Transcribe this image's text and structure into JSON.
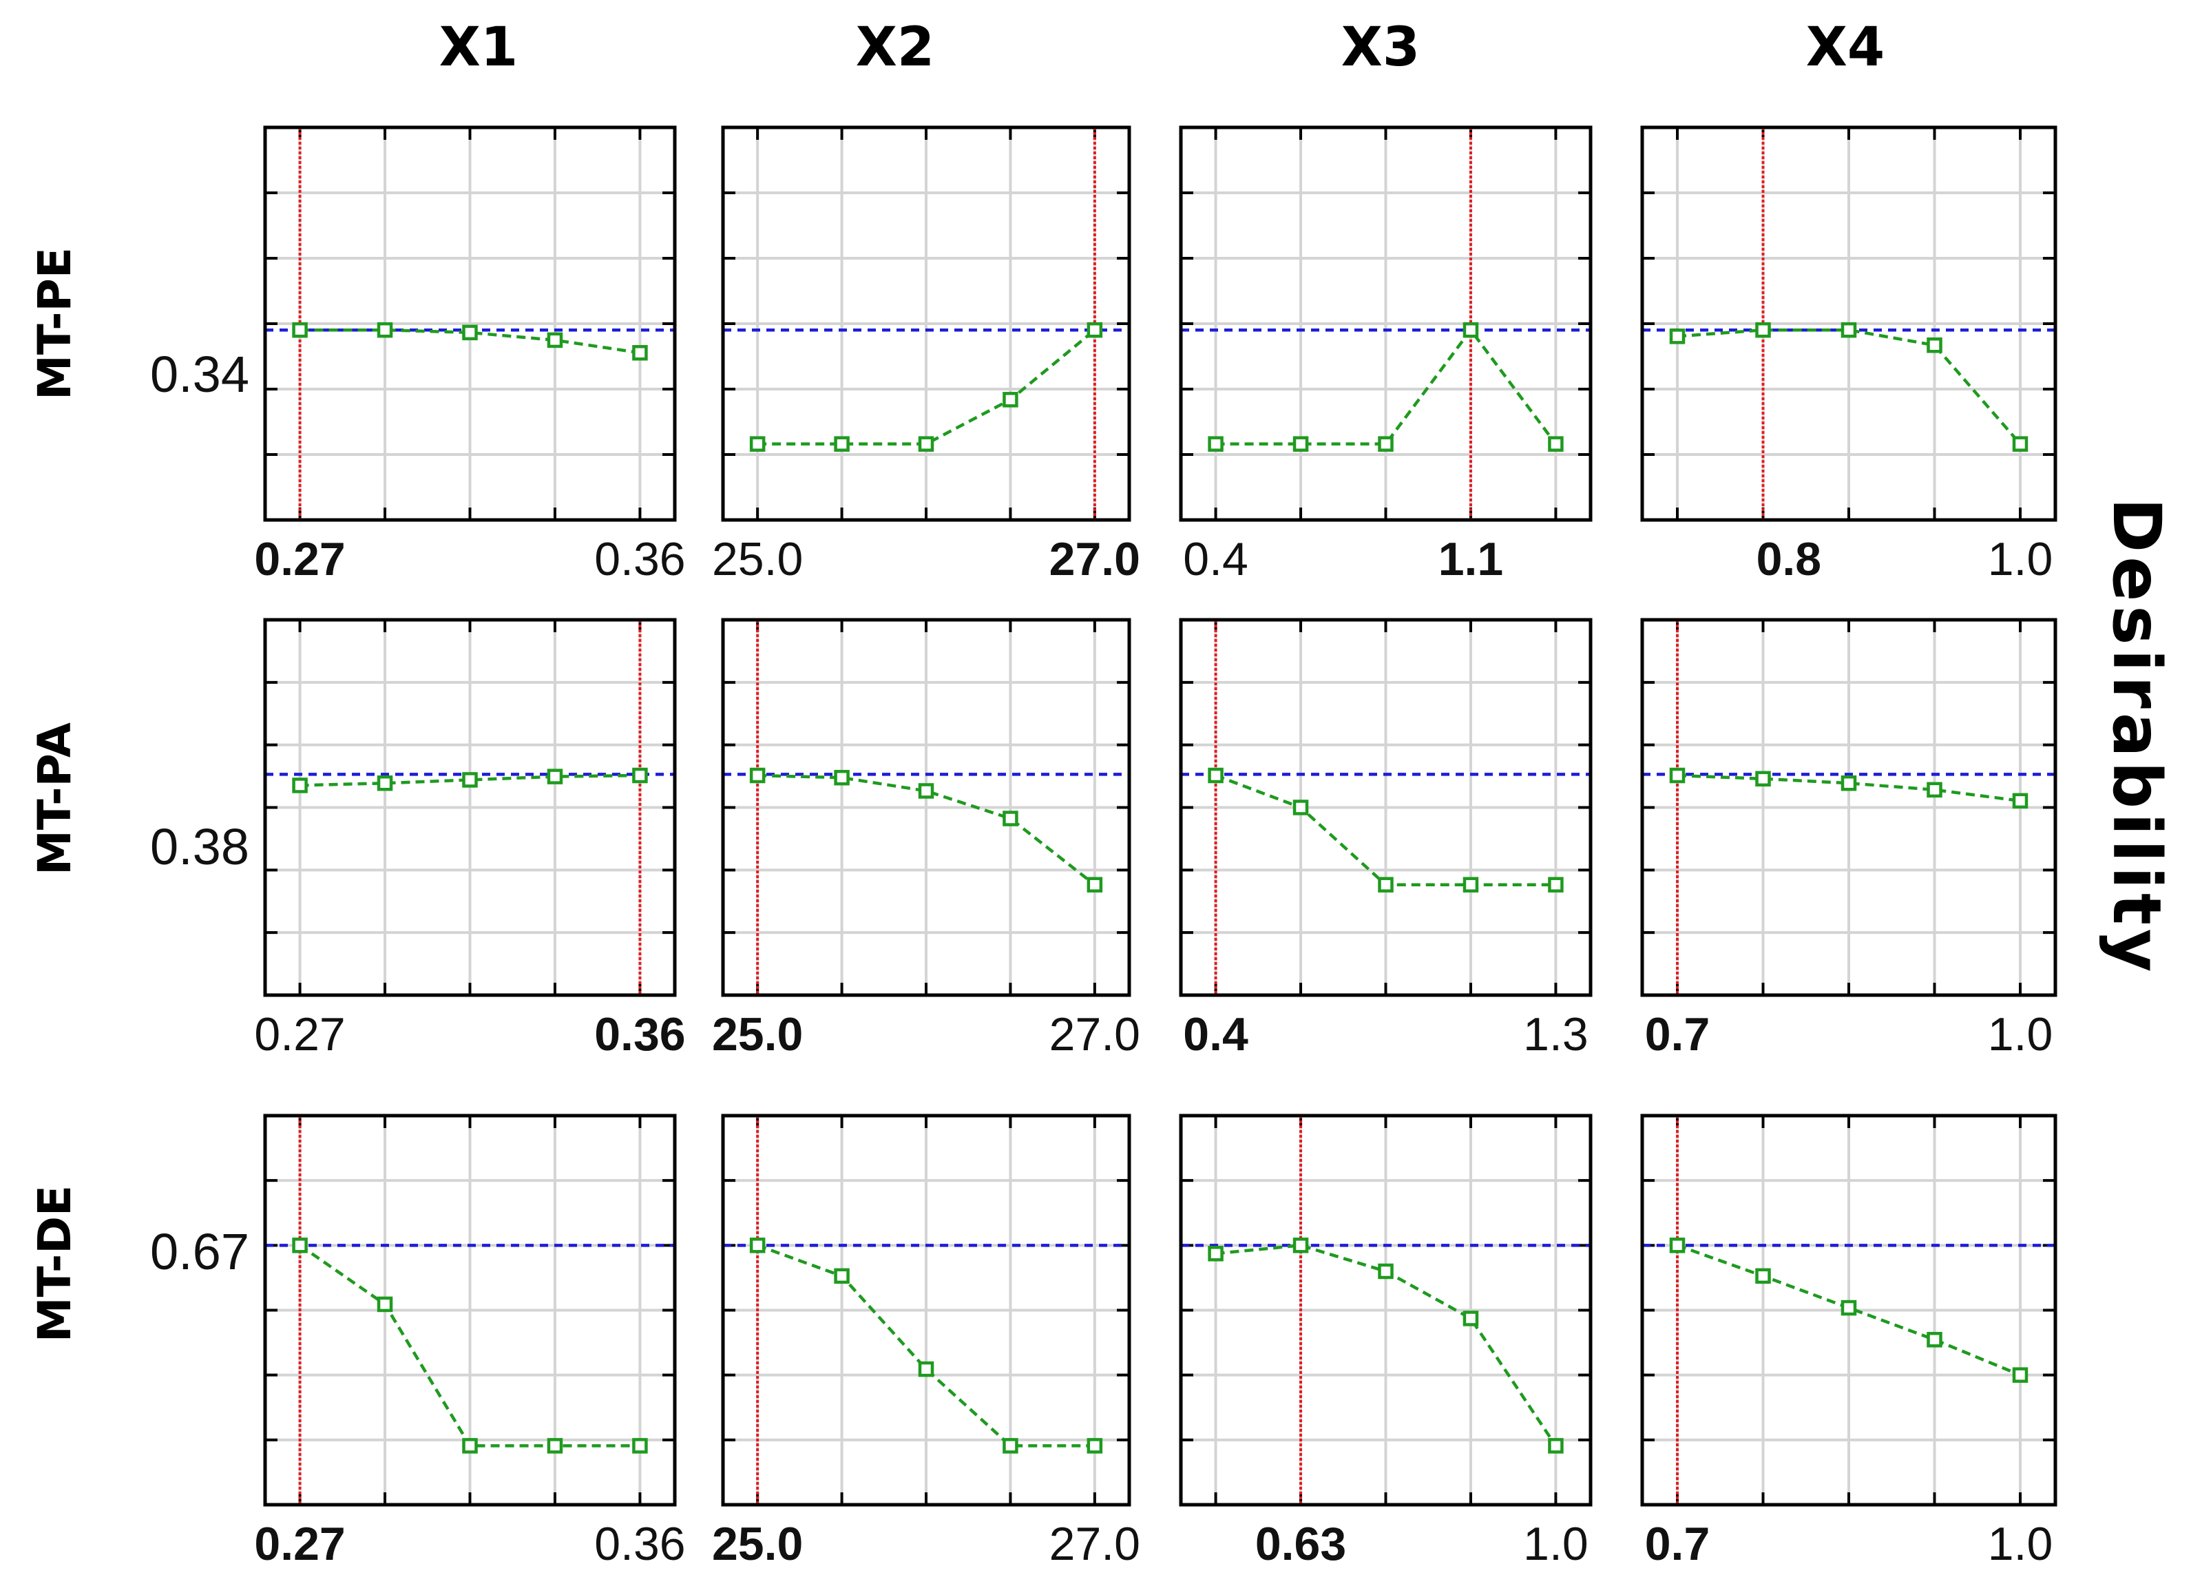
{
  "colors": {
    "frame": "#000000",
    "grid": "#d4d4d4",
    "minor_tick": "#000000",
    "current_line": "#e8191e",
    "desirability_line": "#1d1dd8",
    "series": "#1f9a1f",
    "marker_fill": "#ffffff"
  },
  "side_label": "Desirability",
  "columns": [
    "X1",
    "X2",
    "X3",
    "X4"
  ],
  "rows": [
    {
      "label": "MT-PE",
      "y_value_label": "0.34"
    },
    {
      "label": "MT-PA",
      "y_value_label": "0.38"
    },
    {
      "label": "MT-DE",
      "y_value_label": "0.67"
    }
  ],
  "chart_data": [
    {
      "type": "line",
      "row": 0,
      "col": 0,
      "x": [
        0,
        1,
        2,
        3,
        4
      ],
      "y": [
        0.34,
        0.34,
        0.338,
        0.332,
        0.322
      ],
      "ylim": [
        0.19,
        0.5
      ],
      "current_x": 0,
      "desirability": 0.34,
      "tick_labels": [
        {
          "x": 0,
          "text": "0.27",
          "bold": true
        },
        {
          "x": 4,
          "text": "0.36",
          "bold": false
        }
      ]
    },
    {
      "type": "line",
      "row": 0,
      "col": 1,
      "x": [
        0,
        1,
        2,
        3,
        4
      ],
      "y": [
        0.25,
        0.25,
        0.25,
        0.285,
        0.34
      ],
      "ylim": [
        0.19,
        0.5
      ],
      "current_x": 4,
      "desirability": 0.34,
      "tick_labels": [
        {
          "x": 0,
          "text": "25.0",
          "bold": false
        },
        {
          "x": 4,
          "text": "27.0",
          "bold": true
        }
      ]
    },
    {
      "type": "line",
      "row": 0,
      "col": 2,
      "x": [
        0,
        1,
        2,
        3,
        4
      ],
      "y": [
        0.25,
        0.25,
        0.25,
        0.34,
        0.25
      ],
      "ylim": [
        0.19,
        0.5
      ],
      "current_x": 3,
      "desirability": 0.34,
      "tick_labels": [
        {
          "x": 0,
          "text": "0.4",
          "bold": false
        },
        {
          "x": 3,
          "text": "1.1",
          "bold": true
        }
      ]
    },
    {
      "type": "line",
      "row": 0,
      "col": 3,
      "x": [
        0,
        1,
        2,
        3,
        4
      ],
      "y": [
        0.335,
        0.34,
        0.34,
        0.328,
        0.25
      ],
      "ylim": [
        0.19,
        0.5
      ],
      "current_x": 1,
      "desirability": 0.34,
      "tick_labels": [
        {
          "x": 1.3,
          "text": "0.8",
          "bold": true
        },
        {
          "x": 4,
          "text": "1.0",
          "bold": false
        }
      ]
    },
    {
      "type": "line",
      "row": 1,
      "col": 0,
      "x": [
        0,
        1,
        2,
        3,
        4
      ],
      "y": [
        0.37,
        0.372,
        0.375,
        0.378,
        0.379
      ],
      "ylim": [
        0.18,
        0.52
      ],
      "current_x": 4,
      "desirability": 0.38,
      "tick_labels": [
        {
          "x": 0,
          "text": "0.27",
          "bold": false
        },
        {
          "x": 4,
          "text": "0.36",
          "bold": true
        }
      ]
    },
    {
      "type": "line",
      "row": 1,
      "col": 1,
      "x": [
        0,
        1,
        2,
        3,
        4
      ],
      "y": [
        0.379,
        0.377,
        0.365,
        0.34,
        0.28
      ],
      "ylim": [
        0.18,
        0.52
      ],
      "current_x": 0,
      "desirability": 0.38,
      "tick_labels": [
        {
          "x": 0,
          "text": "25.0",
          "bold": true
        },
        {
          "x": 4,
          "text": "27.0",
          "bold": false
        }
      ]
    },
    {
      "type": "line",
      "row": 1,
      "col": 2,
      "x": [
        0,
        1,
        2,
        3,
        4
      ],
      "y": [
        0.379,
        0.35,
        0.28,
        0.28,
        0.28
      ],
      "ylim": [
        0.18,
        0.52
      ],
      "current_x": 0,
      "desirability": 0.38,
      "tick_labels": [
        {
          "x": 0,
          "text": "0.4",
          "bold": true
        },
        {
          "x": 4,
          "text": "1.3",
          "bold": false
        }
      ]
    },
    {
      "type": "line",
      "row": 1,
      "col": 3,
      "x": [
        0,
        1,
        2,
        3,
        4
      ],
      "y": [
        0.379,
        0.376,
        0.372,
        0.366,
        0.356
      ],
      "ylim": [
        0.18,
        0.52
      ],
      "current_x": 0,
      "desirability": 0.38,
      "tick_labels": [
        {
          "x": 0,
          "text": "0.7",
          "bold": true
        },
        {
          "x": 4,
          "text": "1.0",
          "bold": false
        }
      ]
    },
    {
      "type": "line",
      "row": 2,
      "col": 0,
      "x": [
        0,
        1,
        2,
        3,
        4
      ],
      "y": [
        0.67,
        0.62,
        0.5,
        0.5,
        0.5
      ],
      "ylim": [
        0.45,
        0.78
      ],
      "current_x": 0,
      "desirability": 0.67,
      "tick_labels": [
        {
          "x": 0,
          "text": "0.27",
          "bold": true
        },
        {
          "x": 4,
          "text": "0.36",
          "bold": false
        }
      ]
    },
    {
      "type": "line",
      "row": 2,
      "col": 1,
      "x": [
        0,
        1,
        2,
        3,
        4
      ],
      "y": [
        0.67,
        0.644,
        0.565,
        0.5,
        0.5
      ],
      "ylim": [
        0.45,
        0.78
      ],
      "current_x": 0,
      "desirability": 0.67,
      "tick_labels": [
        {
          "x": 0,
          "text": "25.0",
          "bold": true
        },
        {
          "x": 4,
          "text": "27.0",
          "bold": false
        }
      ]
    },
    {
      "type": "line",
      "row": 2,
      "col": 2,
      "x": [
        0,
        1,
        2,
        3,
        4
      ],
      "y": [
        0.663,
        0.67,
        0.648,
        0.608,
        0.5
      ],
      "ylim": [
        0.45,
        0.78
      ],
      "current_x": 1,
      "desirability": 0.67,
      "tick_labels": [
        {
          "x": 1,
          "text": "0.63",
          "bold": true
        },
        {
          "x": 4,
          "text": "1.0",
          "bold": false
        }
      ]
    },
    {
      "type": "line",
      "row": 2,
      "col": 3,
      "x": [
        0,
        1,
        2,
        3,
        4
      ],
      "y": [
        0.67,
        0.644,
        0.617,
        0.59,
        0.56
      ],
      "ylim": [
        0.45,
        0.78
      ],
      "current_x": 0,
      "desirability": 0.67,
      "tick_labels": [
        {
          "x": 0,
          "text": "0.7",
          "bold": true
        },
        {
          "x": 4,
          "text": "1.0",
          "bold": false
        }
      ]
    }
  ]
}
